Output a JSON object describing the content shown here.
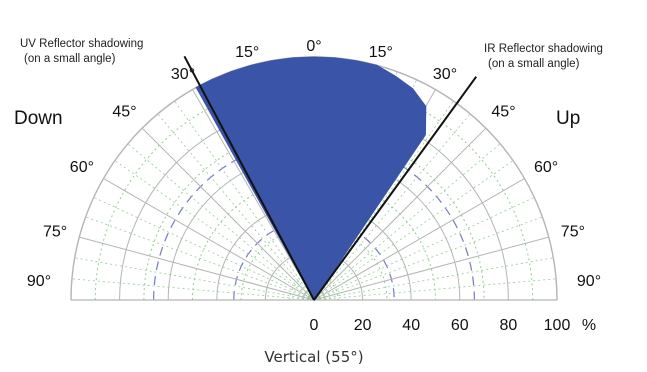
{
  "chart_data": {
    "type": "polar-area",
    "title": "",
    "caption": "Vertical (55°)",
    "side_labels": {
      "left": "Down",
      "right": "Up"
    },
    "angle_ticks": [
      {
        "deg": -90,
        "label": "90°"
      },
      {
        "deg": -75,
        "label": "75°"
      },
      {
        "deg": -60,
        "label": "60°"
      },
      {
        "deg": -45,
        "label": "45°"
      },
      {
        "deg": -30,
        "label": "30°"
      },
      {
        "deg": -15,
        "label": "15°"
      },
      {
        "deg": 0,
        "label": "0°"
      },
      {
        "deg": 15,
        "label": "15°"
      },
      {
        "deg": 30,
        "label": "30°"
      },
      {
        "deg": 45,
        "label": "45°"
      },
      {
        "deg": 60,
        "label": "60°"
      },
      {
        "deg": 75,
        "label": "75°"
      },
      {
        "deg": 90,
        "label": "90°"
      }
    ],
    "radial_ticks": [
      "0",
      "20",
      "40",
      "60",
      "80",
      "100"
    ],
    "radial_unit": "%",
    "rlim": [
      0,
      100
    ],
    "series": [
      {
        "angles": [
          -29,
          -25,
          -20,
          -15,
          -10,
          -5,
          0,
          5,
          10,
          15,
          20,
          25,
          30,
          34
        ],
        "values": [
          100,
          100,
          100,
          100,
          100,
          100,
          100,
          100,
          100,
          100,
          98,
          96,
          92,
          82
        ],
        "fill": "#3a55a8"
      }
    ],
    "reflector_lines": [
      {
        "deg": -28,
        "label_lines": [
          "UV Reflector shadowing",
          "(on a small angle)"
        ]
      },
      {
        "deg": 36,
        "label_lines": [
          "IR Reflector shadowing",
          "(on a small angle)"
        ]
      }
    ],
    "colors": {
      "fill": "#3a55a8",
      "solid_grid": "#b4b4b4",
      "green_grid": "#92cc92",
      "blue_grid": "#7878c8"
    }
  }
}
